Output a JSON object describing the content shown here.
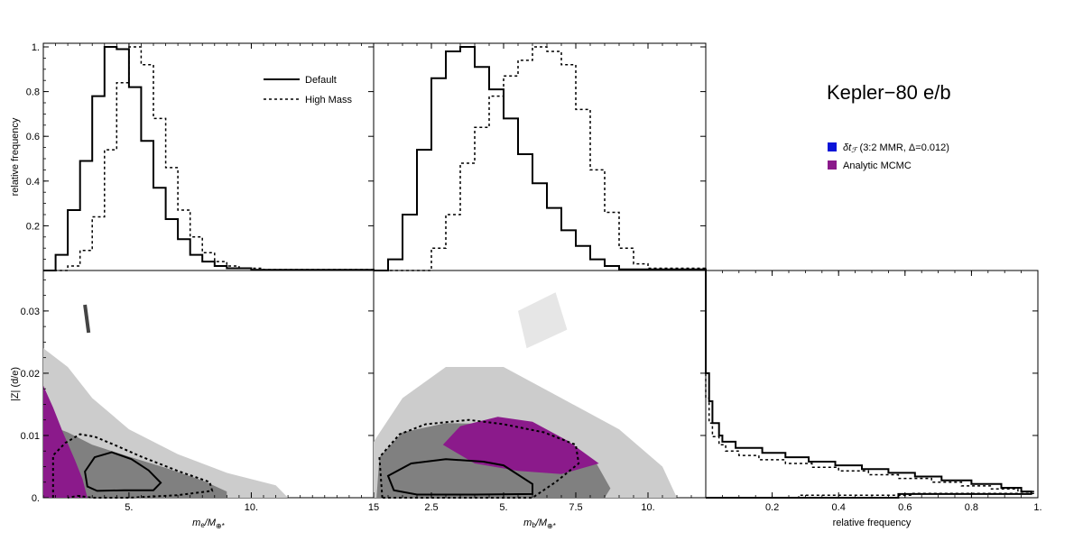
{
  "chart_data": {
    "type": "scatter",
    "title": "Kepler−80 e/b",
    "colors": {
      "sample": "#808080",
      "sample_light": "#c8c8c8",
      "analytic": "#8b1a8b",
      "delta": "#0a14d8",
      "line": "#000000"
    },
    "legend_histogram": [
      {
        "label": "Default",
        "style": "solid"
      },
      {
        "label": "High Mass",
        "style": "dotted"
      }
    ],
    "legend_scatter": [
      {
        "label_prefix": "δt",
        "label_sub": "ℱ",
        "label_rest": " (3:2 MMR, Δ=0.012)",
        "color": "#0a14d8"
      },
      {
        "label": "Analytic MCMC",
        "color": "#8b1a8b"
      }
    ],
    "axes": {
      "xlabel_left_main": "m",
      "xlabel_left_sub": "e",
      "xlabel_left_rest": "/M",
      "xlabel_left_sub2": "⊕*",
      "xlabel_mid_main": "m",
      "xlabel_mid_sub": "b",
      "xlabel_mid_rest": "/M",
      "xlabel_mid_sub2": "⊕*",
      "xlabel_right": "relative frequency",
      "ylabel_top": "relative frequency",
      "ylabel_bottom": "|Z| (d/e)"
    },
    "x_left_range": [
      1.5,
      15
    ],
    "x_mid_range": [
      0.5,
      12
    ],
    "x_right_range": [
      0,
      1
    ],
    "y_top_range": [
      0,
      1
    ],
    "y_bottom_range": [
      0,
      0.0365
    ],
    "ticks": {
      "x_left": [
        {
          "v": 5,
          "label": "5."
        },
        {
          "v": 10,
          "label": "10."
        },
        {
          "v": 15,
          "label": "15"
        }
      ],
      "x_mid": [
        {
          "v": 2.5,
          "label": "2.5"
        },
        {
          "v": 5,
          "label": "5."
        },
        {
          "v": 7.5,
          "label": "7.5"
        },
        {
          "v": 10,
          "label": "10."
        }
      ],
      "x_right": [
        {
          "v": 0.2,
          "label": "0.2"
        },
        {
          "v": 0.4,
          "label": "0.4"
        },
        {
          "v": 0.6,
          "label": "0.6"
        },
        {
          "v": 0.8,
          "label": "0.8"
        },
        {
          "v": 1.0,
          "label": "1."
        }
      ],
      "y_top": [
        {
          "v": 0.2,
          "label": "0.2"
        },
        {
          "v": 0.4,
          "label": "0.4"
        },
        {
          "v": 0.6,
          "label": "0.6"
        },
        {
          "v": 0.8,
          "label": "0.8"
        },
        {
          "v": 1.0,
          "label": "1."
        }
      ],
      "y_bottom": [
        {
          "v": 0,
          "label": "0."
        },
        {
          "v": 0.01,
          "label": "0.01"
        },
        {
          "v": 0.02,
          "label": "0.02"
        },
        {
          "v": 0.03,
          "label": "0.03"
        }
      ]
    },
    "hist_me": {
      "default": [
        [
          1.5,
          0.0
        ],
        [
          2.0,
          0.07
        ],
        [
          2.5,
          0.27
        ],
        [
          3.0,
          0.49
        ],
        [
          3.5,
          0.78
        ],
        [
          4.0,
          1.0
        ],
        [
          4.5,
          0.99
        ],
        [
          5.0,
          0.82
        ],
        [
          5.5,
          0.58
        ],
        [
          6.0,
          0.37
        ],
        [
          6.5,
          0.23
        ],
        [
          7.0,
          0.14
        ],
        [
          7.5,
          0.07
        ],
        [
          8.0,
          0.04
        ],
        [
          8.5,
          0.02
        ],
        [
          9.0,
          0.01
        ],
        [
          10.0,
          0.003
        ],
        [
          15.0,
          0.0
        ]
      ],
      "high_mass": [
        [
          1.5,
          0.0
        ],
        [
          2.5,
          0.02
        ],
        [
          3.0,
          0.09
        ],
        [
          3.5,
          0.24
        ],
        [
          4.0,
          0.54
        ],
        [
          4.5,
          0.84
        ],
        [
          5.0,
          1.0
        ],
        [
          5.5,
          0.92
        ],
        [
          6.0,
          0.68
        ],
        [
          6.5,
          0.46
        ],
        [
          7.0,
          0.27
        ],
        [
          7.5,
          0.15
        ],
        [
          8.0,
          0.08
        ],
        [
          8.5,
          0.04
        ],
        [
          9.0,
          0.02
        ],
        [
          9.5,
          0.01
        ],
        [
          10.5,
          0.004
        ],
        [
          15.0,
          0.0
        ]
      ]
    },
    "hist_mb": {
      "default": [
        [
          0.5,
          0.0
        ],
        [
          1.0,
          0.05
        ],
        [
          1.5,
          0.25
        ],
        [
          2.0,
          0.54
        ],
        [
          2.5,
          0.86
        ],
        [
          3.0,
          0.98
        ],
        [
          3.5,
          1.0
        ],
        [
          4.0,
          0.91
        ],
        [
          4.5,
          0.81
        ],
        [
          5.0,
          0.68
        ],
        [
          5.5,
          0.52
        ],
        [
          6.0,
          0.39
        ],
        [
          6.5,
          0.28
        ],
        [
          7.0,
          0.18
        ],
        [
          7.5,
          0.11
        ],
        [
          8.0,
          0.05
        ],
        [
          8.5,
          0.02
        ],
        [
          9.0,
          0.005
        ],
        [
          12.0,
          0.0
        ]
      ],
      "high_mass": [
        [
          0.5,
          0.0
        ],
        [
          2.5,
          0.1
        ],
        [
          3.0,
          0.25
        ],
        [
          3.5,
          0.48
        ],
        [
          4.0,
          0.64
        ],
        [
          4.5,
          0.78
        ],
        [
          5.0,
          0.87
        ],
        [
          5.5,
          0.94
        ],
        [
          6.0,
          1.0
        ],
        [
          6.5,
          0.98
        ],
        [
          7.0,
          0.92
        ],
        [
          7.5,
          0.72
        ],
        [
          8.0,
          0.45
        ],
        [
          8.5,
          0.26
        ],
        [
          9.0,
          0.1
        ],
        [
          9.5,
          0.03
        ],
        [
          10.0,
          0.01
        ],
        [
          12.0,
          0.0
        ]
      ]
    },
    "hist_z": {
      "default": [
        [
          0.0365,
          0.0
        ],
        [
          0.026,
          0.0
        ],
        [
          0.02,
          0.01
        ],
        [
          0.0155,
          0.02
        ],
        [
          0.012,
          0.04
        ],
        [
          0.01,
          0.05
        ],
        [
          0.009,
          0.09
        ],
        [
          0.008,
          0.17
        ],
        [
          0.0072,
          0.24
        ],
        [
          0.0065,
          0.31
        ],
        [
          0.0058,
          0.39
        ],
        [
          0.0052,
          0.47
        ],
        [
          0.0046,
          0.55
        ],
        [
          0.004,
          0.63
        ],
        [
          0.0034,
          0.71
        ],
        [
          0.0028,
          0.8
        ],
        [
          0.0022,
          0.89
        ],
        [
          0.0016,
          0.95
        ],
        [
          0.001,
          0.98
        ],
        [
          0.0006,
          0.58
        ],
        [
          0.0,
          0.0
        ]
      ],
      "high_mass": [
        [
          0.0365,
          0.0
        ],
        [
          0.022,
          0.0
        ],
        [
          0.016,
          0.01
        ],
        [
          0.012,
          0.02
        ],
        [
          0.0098,
          0.04
        ],
        [
          0.0085,
          0.06
        ],
        [
          0.0075,
          0.1
        ],
        [
          0.0068,
          0.16
        ],
        [
          0.0061,
          0.24
        ],
        [
          0.0055,
          0.32
        ],
        [
          0.0049,
          0.4
        ],
        [
          0.0043,
          0.49
        ],
        [
          0.0037,
          0.58
        ],
        [
          0.0031,
          0.68
        ],
        [
          0.0025,
          0.77
        ],
        [
          0.0019,
          0.86
        ],
        [
          0.0014,
          0.94
        ],
        [
          0.001,
          0.99
        ],
        [
          0.0007,
          0.62
        ],
        [
          0.0004,
          0.28
        ],
        [
          0.0,
          0.0
        ]
      ]
    },
    "scatter_left": {
      "light_cloud": [
        [
          1.5,
          0.0
        ],
        [
          1.5,
          0.024
        ],
        [
          2.5,
          0.021
        ],
        [
          3.5,
          0.016
        ],
        [
          5.0,
          0.011
        ],
        [
          7.0,
          0.007
        ],
        [
          9.0,
          0.004
        ],
        [
          11.0,
          0.002
        ],
        [
          11.5,
          0.0
        ]
      ],
      "dark_core": [
        [
          1.5,
          0.0
        ],
        [
          1.5,
          0.012
        ],
        [
          2.5,
          0.0105
        ],
        [
          3.5,
          0.0085
        ],
        [
          5.0,
          0.0066
        ],
        [
          6.5,
          0.0048
        ],
        [
          8.0,
          0.0028
        ],
        [
          9.0,
          0.001
        ],
        [
          9.0,
          0.0
        ]
      ],
      "hotspot": [
        [
          3.2,
          0.031
        ],
        [
          3.35,
          0.0265
        ]
      ],
      "analytic": [
        [
          1.5,
          0.0
        ],
        [
          1.5,
          0.018
        ],
        [
          1.9,
          0.0145
        ],
        [
          2.3,
          0.0105
        ],
        [
          2.8,
          0.006
        ],
        [
          3.1,
          0.003
        ],
        [
          3.3,
          0.0
        ],
        [
          1.5,
          0.0
        ]
      ],
      "contour_inner": [
        [
          3.2,
          0.0042
        ],
        [
          3.6,
          0.0065
        ],
        [
          4.3,
          0.0073
        ],
        [
          5.1,
          0.0062
        ],
        [
          5.8,
          0.0044
        ],
        [
          6.3,
          0.0024
        ],
        [
          6.0,
          0.0012
        ],
        [
          4.8,
          0.0012
        ],
        [
          3.7,
          0.0011
        ],
        [
          3.3,
          0.0018
        ],
        [
          3.2,
          0.0042
        ]
      ],
      "contour_outer": [
        [
          1.9,
          0.0
        ],
        [
          1.9,
          0.0068
        ],
        [
          2.4,
          0.0088
        ],
        [
          3.0,
          0.0102
        ],
        [
          3.6,
          0.0098
        ],
        [
          4.4,
          0.0085
        ],
        [
          5.5,
          0.0066
        ],
        [
          7.0,
          0.0043
        ],
        [
          8.3,
          0.0025
        ],
        [
          8.4,
          0.0011
        ],
        [
          7.0,
          0.0004
        ],
        [
          5.0,
          0.0
        ],
        [
          3.5,
          0.0
        ],
        [
          2.9,
          0.0003
        ],
        [
          2.5,
          0.0
        ]
      ]
    },
    "scatter_mid": {
      "light_cloud": [
        [
          0.5,
          0.0
        ],
        [
          0.5,
          0.009
        ],
        [
          1.5,
          0.016
        ],
        [
          3.0,
          0.021
        ],
        [
          5.0,
          0.021
        ],
        [
          7.0,
          0.016
        ],
        [
          9.0,
          0.011
        ],
        [
          10.5,
          0.005
        ],
        [
          11.0,
          0.0
        ]
      ],
      "dark_core": [
        [
          0.6,
          0.0
        ],
        [
          0.7,
          0.0065
        ],
        [
          1.5,
          0.0105
        ],
        [
          3.0,
          0.012
        ],
        [
          5.0,
          0.0118
        ],
        [
          6.8,
          0.0096
        ],
        [
          8.2,
          0.0056
        ],
        [
          8.7,
          0.0015
        ],
        [
          8.5,
          0.0
        ]
      ],
      "sparse_streak": [
        [
          5.5,
          0.03
        ],
        [
          6.8,
          0.033
        ],
        [
          7.2,
          0.027
        ],
        [
          5.8,
          0.024
        ]
      ],
      "analytic": [
        [
          2.9,
          0.0085
        ],
        [
          3.5,
          0.0115
        ],
        [
          4.8,
          0.013
        ],
        [
          6.0,
          0.0122
        ],
        [
          7.2,
          0.0092
        ],
        [
          8.3,
          0.0055
        ],
        [
          7.0,
          0.0038
        ],
        [
          5.5,
          0.0043
        ],
        [
          4.0,
          0.0055
        ],
        [
          2.9,
          0.0085
        ]
      ],
      "contour_inner": [
        [
          1.0,
          0.0035
        ],
        [
          1.8,
          0.0055
        ],
        [
          3.0,
          0.0062
        ],
        [
          4.3,
          0.0058
        ],
        [
          5.0,
          0.0052
        ],
        [
          6.0,
          0.0022
        ],
        [
          6.0,
          0.0006
        ],
        [
          4.0,
          0.0005
        ],
        [
          2.0,
          0.0005
        ],
        [
          1.2,
          0.0012
        ],
        [
          1.0,
          0.0035
        ]
      ],
      "contour_outer": [
        [
          0.8,
          0.0
        ],
        [
          0.7,
          0.0065
        ],
        [
          1.4,
          0.0102
        ],
        [
          2.3,
          0.0118
        ],
        [
          3.8,
          0.0125
        ],
        [
          5.0,
          0.0118
        ],
        [
          6.4,
          0.0105
        ],
        [
          7.5,
          0.0085
        ],
        [
          7.6,
          0.0055
        ],
        [
          6.8,
          0.0025
        ],
        [
          6.0,
          0.0
        ],
        [
          0.8,
          0.0
        ]
      ]
    }
  }
}
